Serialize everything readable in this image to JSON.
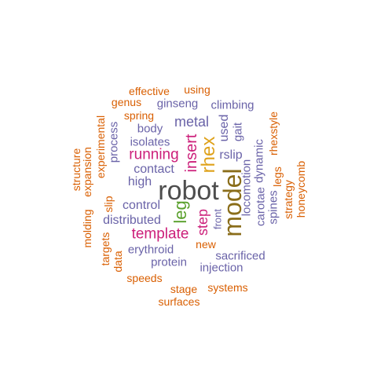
{
  "words": [
    {
      "text": "robot",
      "color": "#4d4d4d"
    },
    {
      "text": "model",
      "color": "#8a6d1a"
    },
    {
      "text": "rhex",
      "color": "#dfa21b"
    },
    {
      "text": "insert",
      "color": "#cc1f7a"
    },
    {
      "text": "leg",
      "color": "#5aa02c"
    },
    {
      "text": "step",
      "color": "#cc1f7a"
    },
    {
      "text": "running",
      "color": "#cc1f7a"
    },
    {
      "text": "template",
      "color": "#cc1f7a"
    },
    {
      "text": "metal",
      "color": "#6a63a8"
    },
    {
      "text": "used",
      "color": "#6a63a8"
    },
    {
      "text": "rslip",
      "color": "#6a63a8"
    },
    {
      "text": "contact",
      "color": "#6a63a8"
    },
    {
      "text": "high",
      "color": "#6a63a8"
    },
    {
      "text": "control",
      "color": "#6a63a8"
    },
    {
      "text": "distributed",
      "color": "#6a63a8"
    },
    {
      "text": "locomotion",
      "color": "#6a63a8"
    },
    {
      "text": "carotae",
      "color": "#6a63a8"
    },
    {
      "text": "dynamic",
      "color": "#6a63a8"
    },
    {
      "text": "ginseng",
      "color": "#6a63a8"
    },
    {
      "text": "climbing",
      "color": "#6a63a8"
    },
    {
      "text": "body",
      "color": "#6a63a8"
    },
    {
      "text": "isolates",
      "color": "#6a63a8"
    },
    {
      "text": "process",
      "color": "#6a63a8"
    },
    {
      "text": "gait",
      "color": "#6a63a8"
    },
    {
      "text": "spines",
      "color": "#6a63a8"
    },
    {
      "text": "front",
      "color": "#6a63a8"
    },
    {
      "text": "erythroid",
      "color": "#6a63a8"
    },
    {
      "text": "protein",
      "color": "#6a63a8"
    },
    {
      "text": "sacrificed",
      "color": "#6a63a8"
    },
    {
      "text": "injection",
      "color": "#6a63a8"
    },
    {
      "text": "effective",
      "color": "#d95f02"
    },
    {
      "text": "using",
      "color": "#d95f02"
    },
    {
      "text": "genus",
      "color": "#d95f02"
    },
    {
      "text": "spring",
      "color": "#d95f02"
    },
    {
      "text": "experimental",
      "color": "#d95f02"
    },
    {
      "text": "expansion",
      "color": "#d95f02"
    },
    {
      "text": "structure",
      "color": "#d95f02"
    },
    {
      "text": "molding",
      "color": "#d95f02"
    },
    {
      "text": "slip",
      "color": "#d95f02"
    },
    {
      "text": "targets",
      "color": "#d95f02"
    },
    {
      "text": "data",
      "color": "#d95f02"
    },
    {
      "text": "speeds",
      "color": "#d95f02"
    },
    {
      "text": "stage",
      "color": "#d95f02"
    },
    {
      "text": "systems",
      "color": "#d95f02"
    },
    {
      "text": "surfaces",
      "color": "#d95f02"
    },
    {
      "text": "new",
      "color": "#d95f02"
    },
    {
      "text": "rhexstyle",
      "color": "#d95f02"
    },
    {
      "text": "legs",
      "color": "#d95f02"
    },
    {
      "text": "strategy",
      "color": "#d95f02"
    },
    {
      "text": "honeycomb",
      "color": "#d95f02"
    }
  ]
}
